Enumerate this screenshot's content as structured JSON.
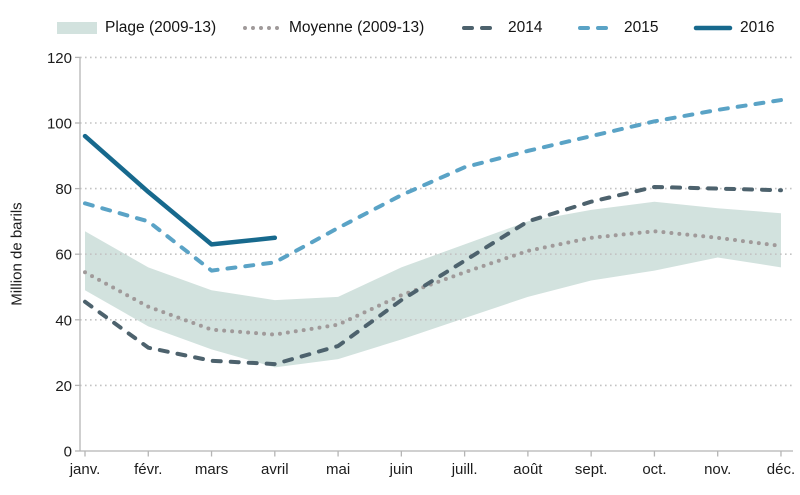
{
  "chart_data": {
    "type": "line",
    "title": "",
    "xlabel": "",
    "ylabel": "Million de barils",
    "ylim": [
      0,
      120
    ],
    "yticks": [
      0,
      20,
      40,
      60,
      80,
      100,
      120
    ],
    "grid": "horizontal-dotted",
    "legend_position": "top",
    "categories": [
      "janv.",
      "févr.",
      "mars",
      "avril",
      "mai",
      "juin",
      "juill.",
      "août",
      "sept.",
      "oct.",
      "nov.",
      "déc."
    ],
    "series": [
      {
        "name": "Plage (2009-13)",
        "type": "band",
        "color": "#d2e2de",
        "upper": [
          67,
          56,
          49,
          46,
          47,
          56,
          63,
          70,
          73.5,
          76,
          74,
          72.5
        ],
        "lower": [
          49,
          38,
          31,
          25.5,
          28,
          34,
          40.5,
          47,
          52,
          55,
          59,
          56
        ]
      },
      {
        "name": "Moyenne (2009-13)",
        "type": "dotted",
        "color": "#a09a9a",
        "values": [
          54.5,
          44,
          37,
          35.5,
          38.5,
          47.5,
          54.5,
          61,
          65,
          67,
          65,
          62.5
        ]
      },
      {
        "name": "2014",
        "type": "dashed",
        "color": "#4d626d",
        "values": [
          45.5,
          31.5,
          27.5,
          26.5,
          32,
          46,
          58,
          70,
          76,
          80.5,
          80,
          79.5
        ]
      },
      {
        "name": "2015",
        "type": "dashed",
        "color": "#5aa3c6",
        "values": [
          75.5,
          70,
          55,
          57.5,
          68,
          78,
          86.5,
          91.5,
          96,
          100.5,
          104,
          107
        ]
      },
      {
        "name": "2016",
        "type": "solid",
        "color": "#17698d",
        "values": [
          96,
          79,
          63,
          65,
          null,
          null,
          null,
          null,
          null,
          null,
          null,
          null
        ]
      }
    ],
    "axis_colors": {
      "gridline": "#c3c3c3",
      "axis_line": "#b5b5b5",
      "label_text": "#1c1c1c"
    }
  }
}
